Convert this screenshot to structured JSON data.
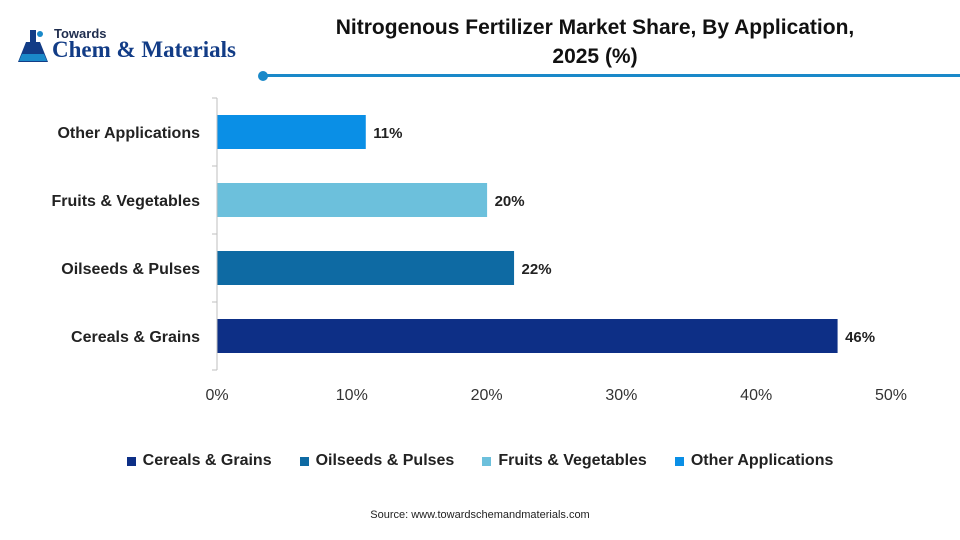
{
  "brand": {
    "top": "Towards",
    "main": "Chem & Materials",
    "color": "#123c86"
  },
  "header": {
    "accent_color": "#1a89c9"
  },
  "chart_data": {
    "type": "bar",
    "orientation": "horizontal",
    "title": "Nitrogenous Fertilizer Market Share, By Application, 2025 (%)",
    "title_lines": [
      "Nitrogenous Fertilizer Market Share, By Application,",
      "2025 (%)"
    ],
    "categories": [
      "Cereals & Grains",
      "Oilseeds & Pulses",
      "Fruits & Vegetables",
      "Other Applications"
    ],
    "values": [
      46,
      22,
      20,
      11
    ],
    "data_labels": [
      "46%",
      "22%",
      "20%",
      "11%"
    ],
    "colors": [
      "#0d2f86",
      "#0e6aa3",
      "#6cc0dc",
      "#0a8fe6"
    ],
    "xlim": [
      0,
      50
    ],
    "xticks": [
      0,
      10,
      20,
      30,
      40,
      50
    ],
    "xtick_labels": [
      "0%",
      "10%",
      "20%",
      "30%",
      "40%",
      "50%"
    ],
    "grid": false,
    "legend": {
      "position": "bottom",
      "entries": [
        "Cereals & Grains",
        "Oilseeds & Pulses",
        "Fruits & Vegetables",
        "Other Applications"
      ]
    }
  },
  "source": "Source: www.towardschemandmaterials.com"
}
